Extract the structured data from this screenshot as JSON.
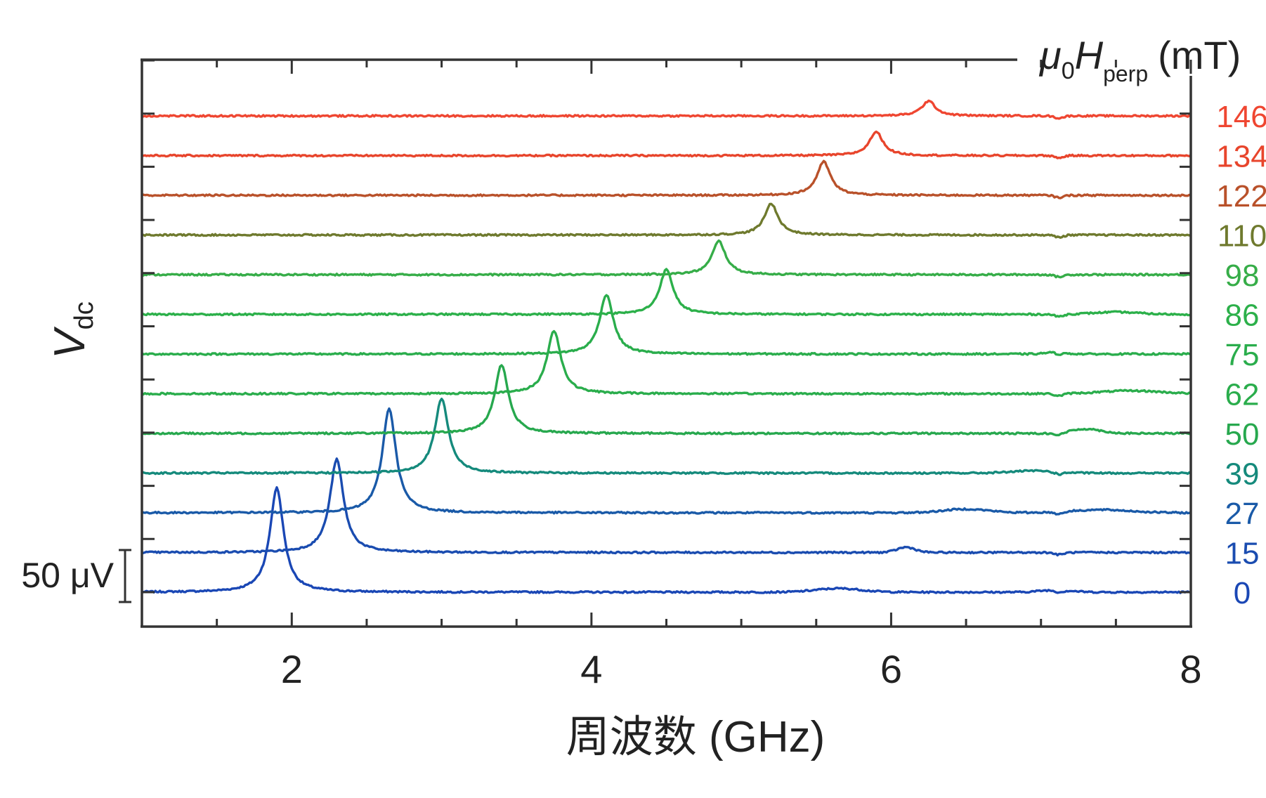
{
  "chart_data": {
    "type": "line",
    "title": "",
    "xlabel": "周波数 (GHz)",
    "ylabel": {
      "base": "V",
      "sub": "dc"
    },
    "legend_title": {
      "mu": "μ",
      "zero": "0",
      "H": "H",
      "sub": "perp",
      "unit": "(mT)"
    },
    "legend_placement": "right",
    "xlim": [
      1,
      8
    ],
    "xticks": [
      2,
      4,
      6,
      8
    ],
    "scale_bar": {
      "label": "50 μV",
      "value_uV": 50
    },
    "stack_offset_uV": 53.3,
    "series": [
      {
        "name": "0",
        "color": "#1a47b5",
        "fr": 1.9,
        "amp": 140,
        "bumps": [
          [
            5.65,
            5,
            0.15
          ],
          [
            7.1,
            3,
            0.1
          ]
        ]
      },
      {
        "name": "15",
        "color": "#1a4cb0",
        "fr": 2.3,
        "amp": 125,
        "bumps": [
          [
            6.1,
            7,
            0.06
          ]
        ]
      },
      {
        "name": "27",
        "color": "#1a5aa8",
        "fr": 2.65,
        "amp": 140,
        "bumps": [
          [
            6.5,
            5,
            0.15
          ],
          [
            7.4,
            4,
            0.2
          ]
        ]
      },
      {
        "name": "39",
        "color": "#158a7c",
        "fr": 3.0,
        "amp": 100,
        "bumps": [
          [
            6.95,
            3,
            0.15
          ]
        ]
      },
      {
        "name": "50",
        "color": "#27a84e",
        "fr": 3.4,
        "amp": 92,
        "bumps": [
          [
            7.3,
            6,
            0.1
          ]
        ]
      },
      {
        "name": "62",
        "color": "#2aad4c",
        "fr": 3.75,
        "amp": 85,
        "bumps": [
          [
            7.6,
            4,
            0.2
          ]
        ]
      },
      {
        "name": "75",
        "color": "#2aad4c",
        "fr": 4.1,
        "amp": 80,
        "bumps": [
          [
            7.1,
            3,
            0.06
          ]
        ]
      },
      {
        "name": "86",
        "color": "#2cb04a",
        "fr": 4.5,
        "amp": 60,
        "bumps": [
          [
            7.5,
            3,
            0.15
          ]
        ]
      },
      {
        "name": "98",
        "color": "#36ad48",
        "fr": 4.85,
        "amp": 45,
        "bumps": []
      },
      {
        "name": "110",
        "color": "#6f7a2e",
        "fr": 5.2,
        "amp": 42,
        "bumps": []
      },
      {
        "name": "122",
        "color": "#b9512a",
        "fr": 5.55,
        "amp": 45,
        "bumps": []
      },
      {
        "name": "134",
        "color": "#e8452c",
        "fr": 5.9,
        "amp": 32,
        "bumps": []
      },
      {
        "name": "146",
        "color": "#ef4631",
        "fr": 6.25,
        "amp": 20,
        "bumps": []
      }
    ]
  }
}
